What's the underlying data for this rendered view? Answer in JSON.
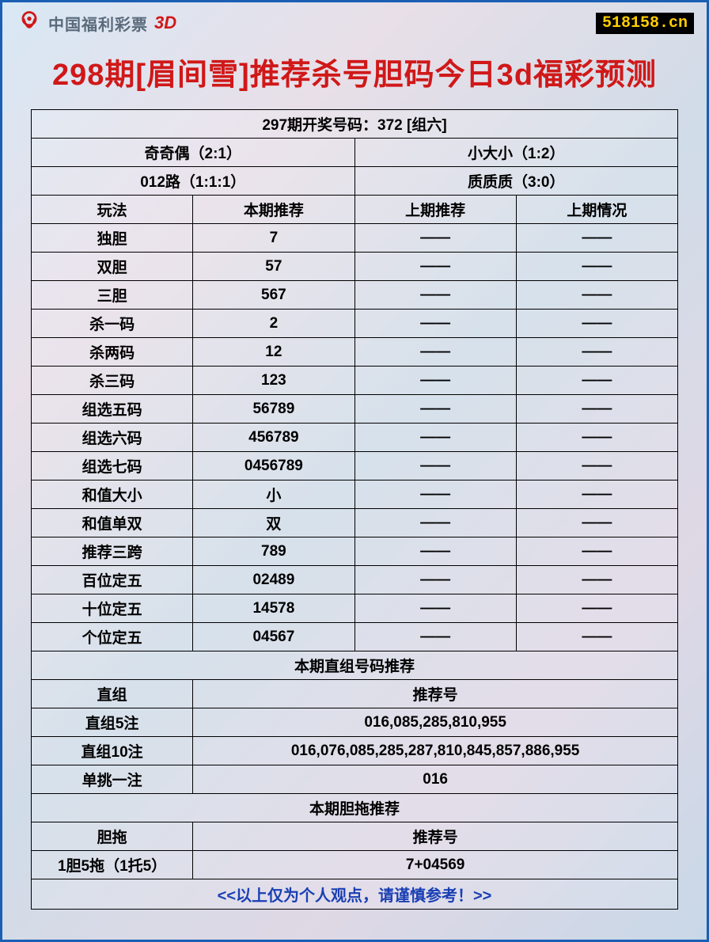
{
  "header": {
    "logo_text": "中国福利彩票",
    "logo_3d": "3D",
    "site_url": "518158.cn"
  },
  "title": "298期[眉间雪]推荐杀号胆码今日3d福彩预测",
  "draw_info": "297期开奖号码：372 [组六]",
  "stats": {
    "row1_left": "奇奇偶（2:1）",
    "row1_right": "小大小（1:2）",
    "row2_left": "012路（1:1:1）",
    "row2_right": "质质质（3:0）"
  },
  "columns": [
    "玩法",
    "本期推荐",
    "上期推荐",
    "上期情况"
  ],
  "rows": [
    {
      "name": "独胆",
      "current": "7",
      "prev_rec": "——",
      "prev_result": "——"
    },
    {
      "name": "双胆",
      "current": "57",
      "prev_rec": "——",
      "prev_result": "——"
    },
    {
      "name": "三胆",
      "current": "567",
      "prev_rec": "——",
      "prev_result": "——"
    },
    {
      "name": "杀一码",
      "current": "2",
      "prev_rec": "——",
      "prev_result": "——"
    },
    {
      "name": "杀两码",
      "current": "12",
      "prev_rec": "——",
      "prev_result": "——"
    },
    {
      "name": "杀三码",
      "current": "123",
      "prev_rec": "——",
      "prev_result": "——"
    },
    {
      "name": "组选五码",
      "current": "56789",
      "prev_rec": "——",
      "prev_result": "——"
    },
    {
      "name": "组选六码",
      "current": "456789",
      "prev_rec": "——",
      "prev_result": "——"
    },
    {
      "name": "组选七码",
      "current": "0456789",
      "prev_rec": "——",
      "prev_result": "——"
    },
    {
      "name": "和值大小",
      "current": "小",
      "prev_rec": "——",
      "prev_result": "——"
    },
    {
      "name": "和值单双",
      "current": "双",
      "prev_rec": "——",
      "prev_result": "——"
    },
    {
      "name": "推荐三跨",
      "current": "789",
      "prev_rec": "——",
      "prev_result": "——"
    },
    {
      "name": "百位定五",
      "current": "02489",
      "prev_rec": "——",
      "prev_result": "——"
    },
    {
      "name": "十位定五",
      "current": "14578",
      "prev_rec": "——",
      "prev_result": "——"
    },
    {
      "name": "个位定五",
      "current": "04567",
      "prev_rec": "——",
      "prev_result": "——"
    }
  ],
  "zhizu": {
    "header": "本期直组号码推荐",
    "col_label": "直组",
    "col_value": "推荐号",
    "rows": [
      {
        "name": "直组5注",
        "value": "016,085,285,810,955"
      },
      {
        "name": "直组10注",
        "value": "016,076,085,285,287,810,845,857,886,955"
      },
      {
        "name": "单挑一注",
        "value": "016"
      }
    ]
  },
  "dantuo": {
    "header": "本期胆拖推荐",
    "col_label": "胆拖",
    "col_value": "推荐号",
    "rows": [
      {
        "name": "1胆5拖（1托5）",
        "value": "7+04569"
      }
    ]
  },
  "footer": "<<以上仅为个人观点，请谨慎参考！>>",
  "colors": {
    "border": "#1a5fb4",
    "title": "#d01818",
    "footer": "#1a3fb4",
    "url_bg": "#000000",
    "url_fg": "#ffcc00"
  }
}
